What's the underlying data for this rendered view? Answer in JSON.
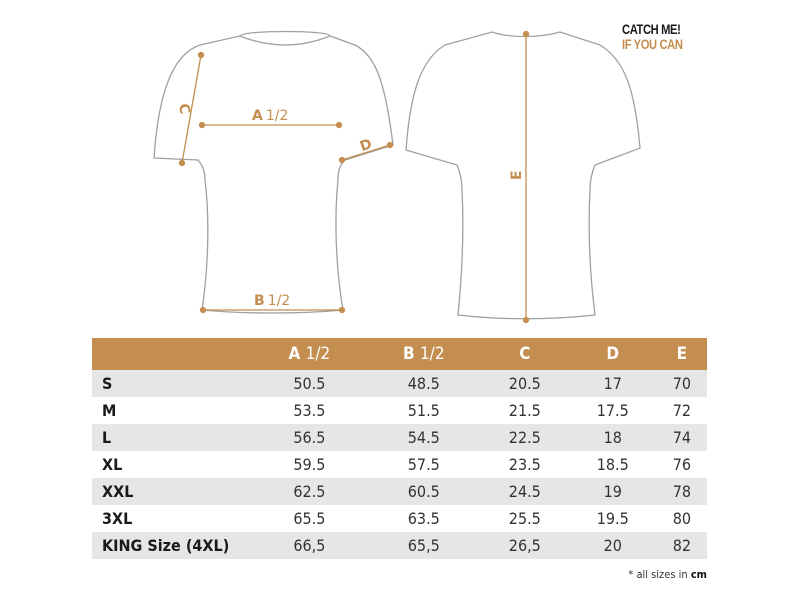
{
  "logo": {
    "line1": "CATCH ME!",
    "line2": "IF YOU CAN"
  },
  "diagram": {
    "labels": {
      "a": "A",
      "a_half": "1/2",
      "b": "B",
      "b_half": "1/2",
      "c": "C",
      "d": "D",
      "e": "E"
    }
  },
  "colors": {
    "accent": "#c48e50",
    "row_alt": "#e6e6e6",
    "outline": "#9a9a9a"
  },
  "table": {
    "headers": [
      {
        "letter": "",
        "suffix": ""
      },
      {
        "letter": "A",
        "suffix": "1/2"
      },
      {
        "letter": "B",
        "suffix": "1/2"
      },
      {
        "letter": "C",
        "suffix": ""
      },
      {
        "letter": "D",
        "suffix": ""
      },
      {
        "letter": "E",
        "suffix": ""
      }
    ],
    "rows": [
      [
        "S",
        "50.5",
        "48.5",
        "20.5",
        "17",
        "70"
      ],
      [
        "M",
        "53.5",
        "51.5",
        "21.5",
        "17.5",
        "72"
      ],
      [
        "L",
        "56.5",
        "54.5",
        "22.5",
        "18",
        "74"
      ],
      [
        "XL",
        "59.5",
        "57.5",
        "23.5",
        "18.5",
        "76"
      ],
      [
        "XXL",
        "62.5",
        "60.5",
        "24.5",
        "19",
        "78"
      ],
      [
        "3XL",
        "65.5",
        "63.5",
        "25.5",
        "19.5",
        "80"
      ],
      [
        "KING Size (4XL)",
        "66,5",
        "65,5",
        "26,5",
        "20",
        "82"
      ]
    ]
  },
  "note": {
    "text": "* all sizes in ",
    "unit": "cm"
  }
}
